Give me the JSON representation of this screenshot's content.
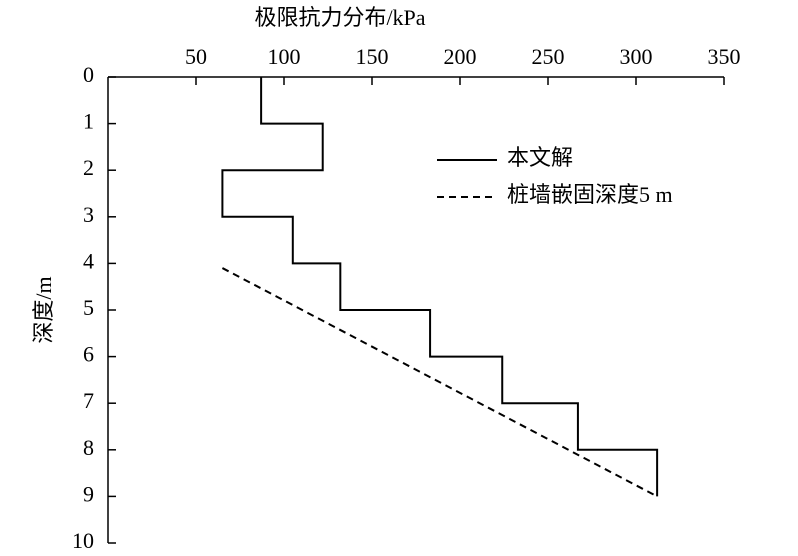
{
  "chart_data": {
    "type": "line",
    "x_label": "极限抗力分布/kPa",
    "y_label": "深度/m",
    "xlim": [
      0,
      350
    ],
    "xticks": [
      50,
      100,
      150,
      200,
      250,
      300,
      350
    ],
    "ylim": [
      0,
      10
    ],
    "yticks": [
      0,
      1,
      2,
      3,
      4,
      5,
      6,
      7,
      8,
      9,
      10
    ],
    "y_inverted": true,
    "x_axis_position": "top",
    "legend": "upper right",
    "series": [
      {
        "name": "本文解",
        "color": "#000000",
        "dash": false,
        "x": [
          87,
          87,
          122,
          122,
          65,
          65,
          105,
          105,
          132,
          132,
          183,
          183,
          224,
          224,
          267,
          267,
          312,
          312
        ],
        "values": [
          0,
          1,
          1,
          2,
          2,
          3,
          3,
          4,
          4,
          5,
          5,
          6,
          6,
          7,
          7,
          8,
          8,
          9
        ]
      },
      {
        "name": "桩墙嵌固深度5 m",
        "color": "#000000",
        "dash": true,
        "x": [
          65,
          312
        ],
        "values": [
          4.1,
          9
        ]
      }
    ]
  }
}
